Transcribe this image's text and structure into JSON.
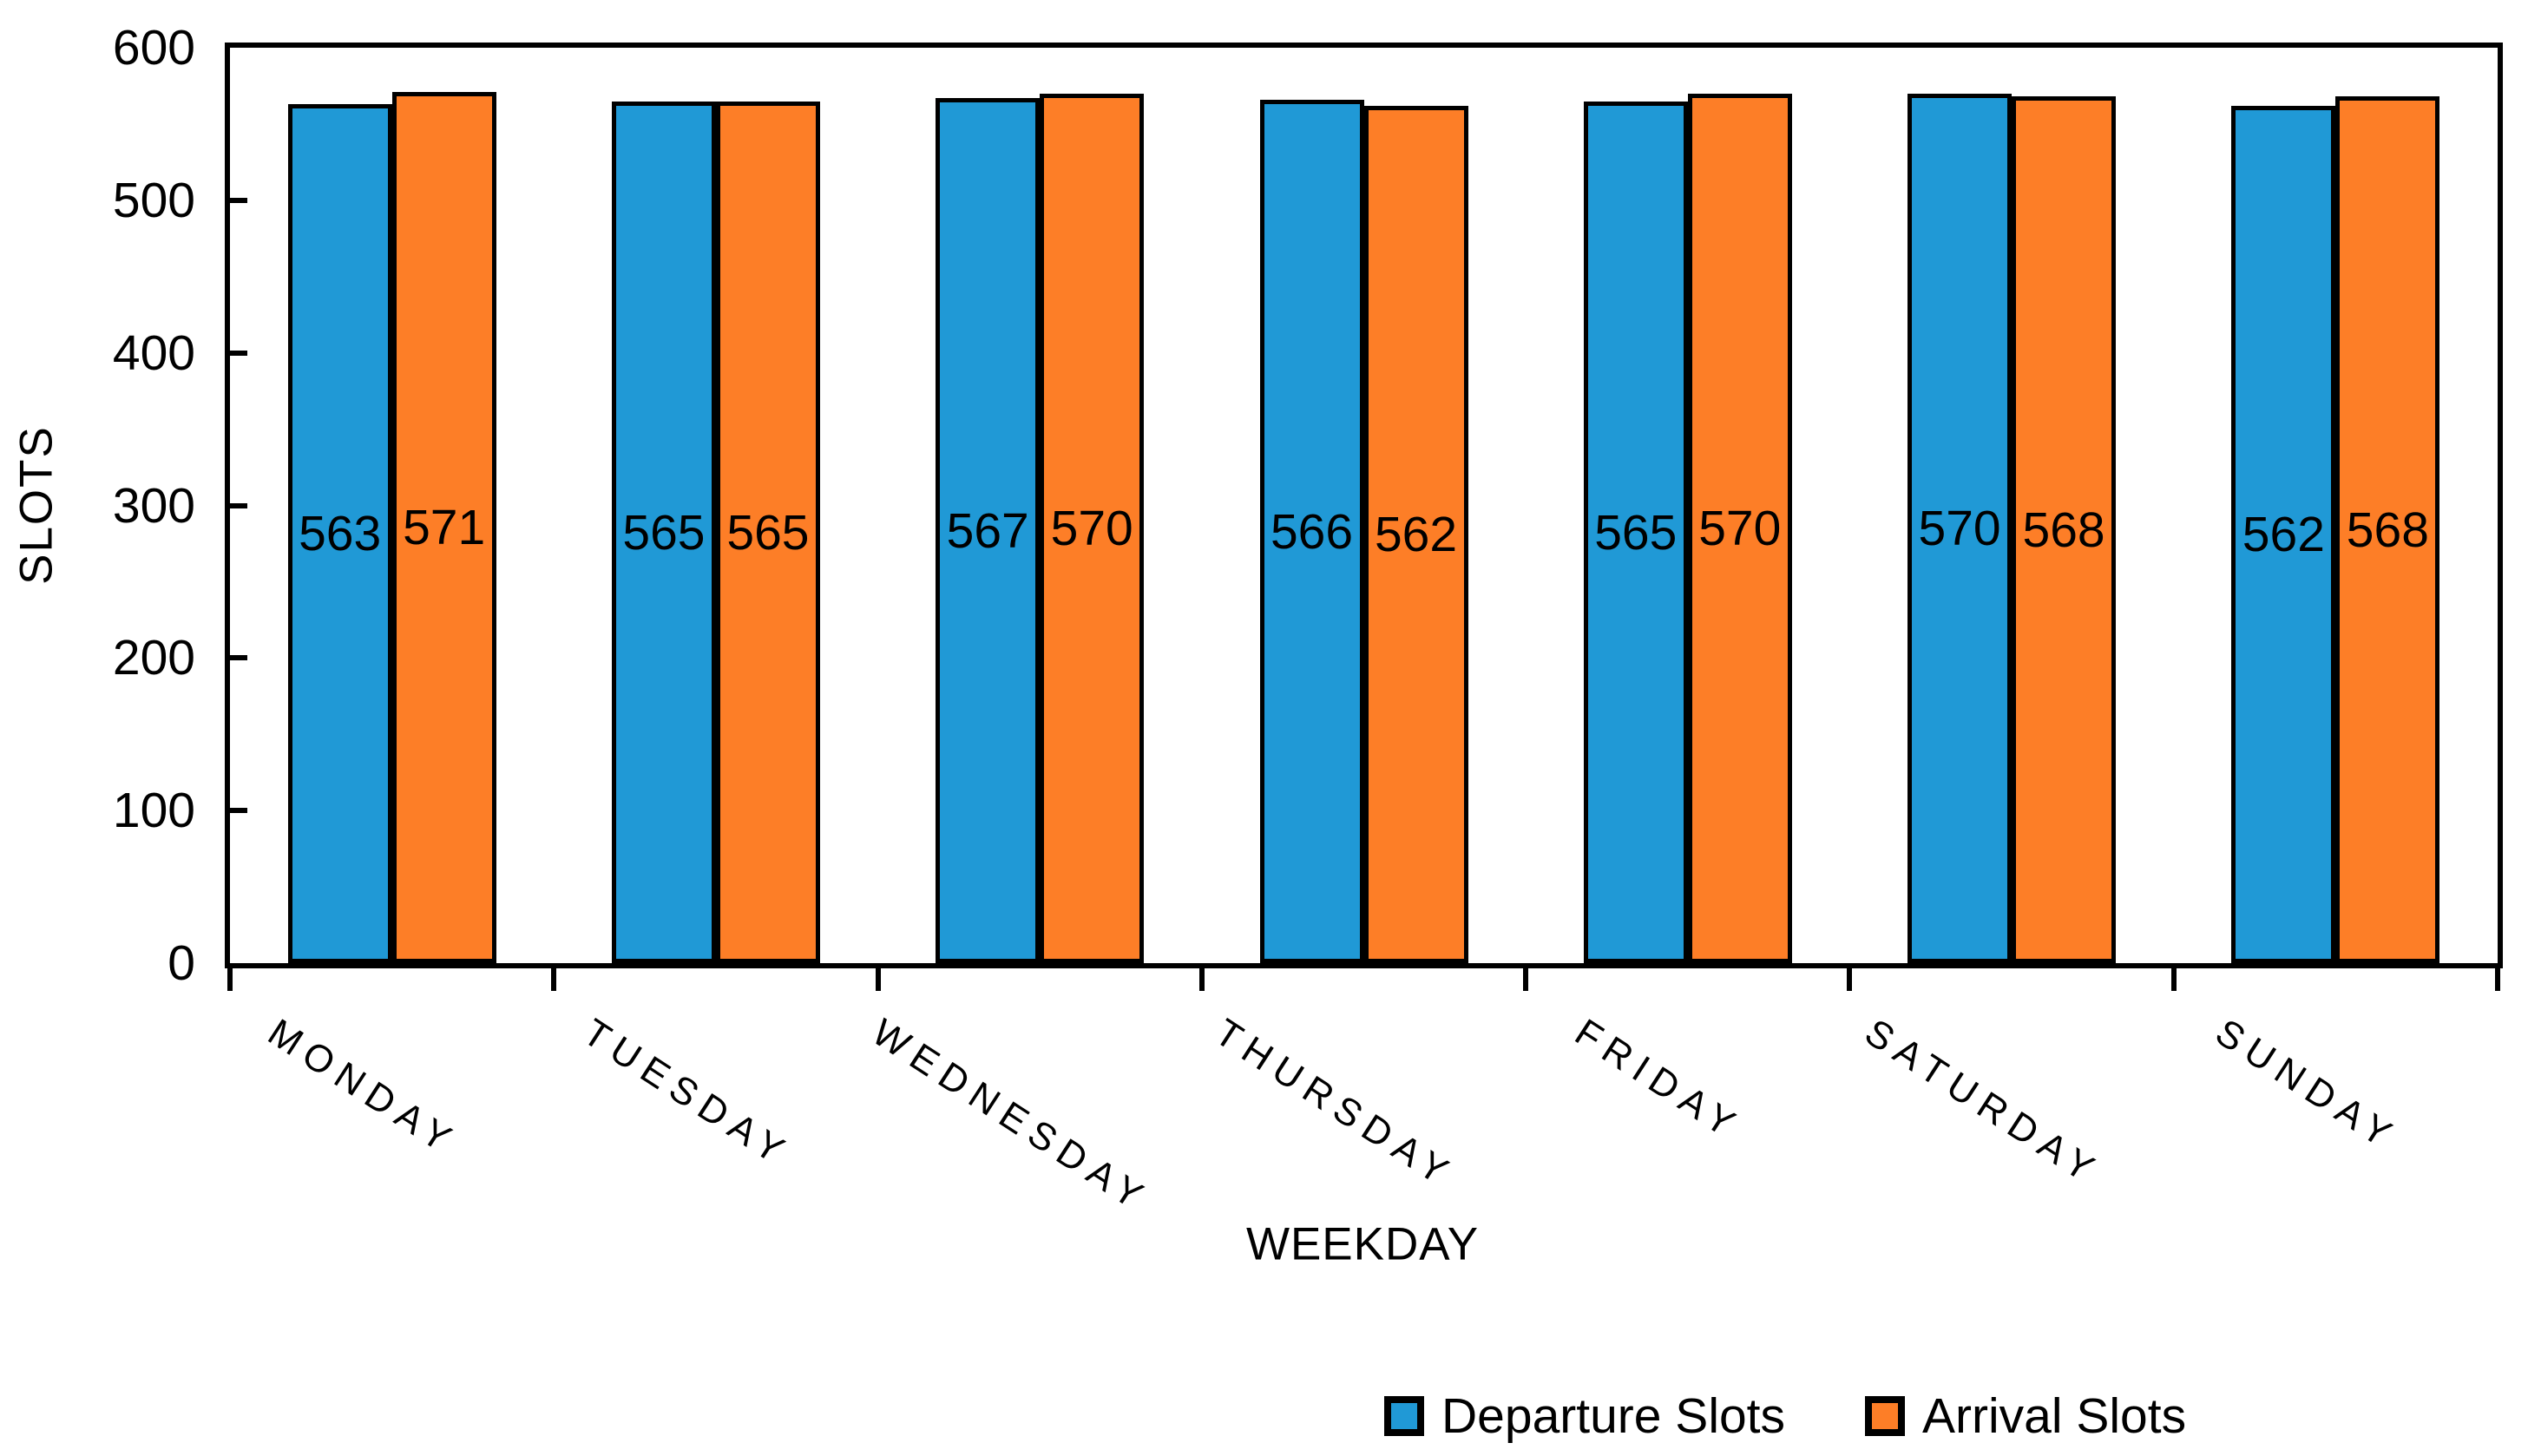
{
  "chart_data": {
    "type": "bar",
    "categories": [
      "MONDAY",
      "TUESDAY",
      "WEDNESDAY",
      "THURSDAY",
      "FRIDAY",
      "SATURDAY",
      "SUNDAY"
    ],
    "series": [
      {
        "name": "Departure Slots",
        "color": "#2099D6",
        "values": [
          563,
          565,
          567,
          566,
          565,
          570,
          562
        ]
      },
      {
        "name": "Arrival Slots",
        "color": "#FD7E27",
        "values": [
          571,
          565,
          570,
          562,
          570,
          568,
          568
        ]
      }
    ],
    "title": "",
    "xlabel": "WEEKDAY",
    "ylabel": "SLOTS",
    "ylim": [
      0,
      600
    ],
    "yticks": [
      0,
      100,
      200,
      300,
      400,
      500,
      600
    ],
    "grid": false,
    "legend_position": "bottom",
    "bar_outline_color": "#000000",
    "data_label_position": "center"
  },
  "axes": {
    "x_title": "WEEKDAY",
    "y_title": "SLOTS"
  },
  "legend": {
    "items": [
      {
        "label": "Departure Slots",
        "color": "#2099D6"
      },
      {
        "label": "Arrival Slots",
        "color": "#FD7E27"
      }
    ]
  }
}
